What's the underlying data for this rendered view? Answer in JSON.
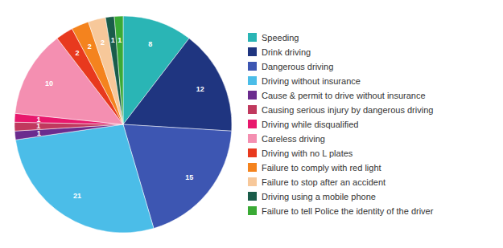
{
  "chart_data": {
    "type": "pie",
    "categories": [
      "Speeding",
      "Drink driving",
      "Dangerous driving",
      "Driving without insurance",
      "Cause & permit to drive without insurance",
      "Causing serious injury by dangerous driving",
      "Driving while disqualified",
      "Careless driving",
      "Driving with no L plates",
      "Failure to comply with red light",
      "Failure to stop after an accident",
      "Driving using a mobile phone",
      "Failure to tell Police the identity of the driver"
    ],
    "values": [
      8,
      12,
      15,
      21,
      1,
      1,
      1,
      10,
      2,
      2,
      2,
      1,
      1
    ],
    "colors": [
      "#2ab5b5",
      "#1f3580",
      "#3d56b2",
      "#4bbde8",
      "#6b2c8e",
      "#c0395e",
      "#e8186d",
      "#f48fb1",
      "#e8391e",
      "#f4831e",
      "#f7c89a",
      "#1a5c4a",
      "#3aaa35"
    ],
    "data_labels": true,
    "legend": "right"
  }
}
